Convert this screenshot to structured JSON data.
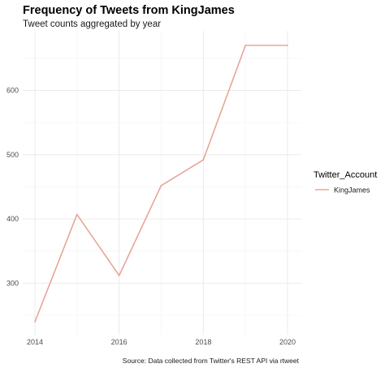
{
  "chart_data": {
    "type": "line",
    "title": "Frequency of Tweets from KingJames",
    "subtitle": "Tweet counts aggregated by year",
    "caption": "Source: Data collected from Twitter's REST API via rtweet",
    "xlabel": "",
    "ylabel": "",
    "x": [
      2014,
      2015,
      2016,
      2017,
      2018,
      2019,
      2020
    ],
    "series": [
      {
        "name": "KingJames",
        "color": "#e8a598",
        "values": [
          240,
          407,
          312,
          452,
          492,
          670,
          670
        ]
      }
    ],
    "xlim": [
      2014,
      2020
    ],
    "ylim": [
      240,
      670
    ],
    "x_ticks": [
      2014,
      2016,
      2018,
      2020
    ],
    "x_minor_ticks": [
      2015,
      2017,
      2019
    ],
    "y_ticks": [
      300,
      400,
      500,
      600
    ],
    "y_minor_ticks": [
      250,
      350,
      450,
      550,
      650
    ],
    "grid": true,
    "legend": {
      "title": "Twitter_Account",
      "position": "right"
    }
  }
}
